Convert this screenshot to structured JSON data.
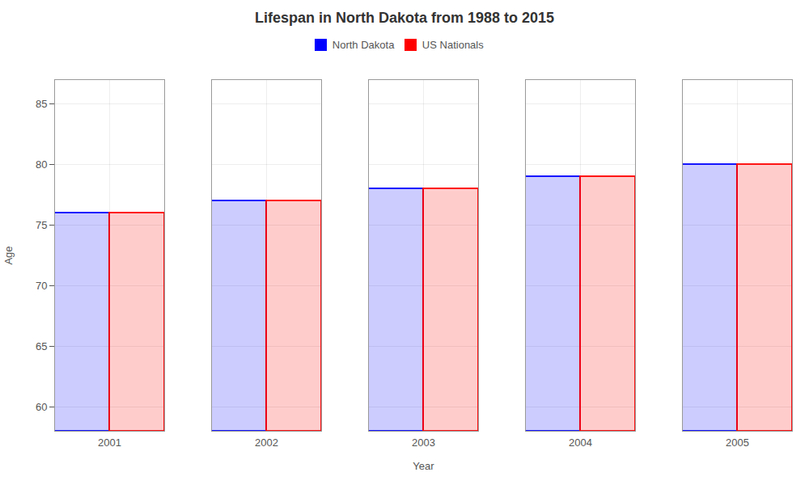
{
  "chart_data": {
    "type": "bar",
    "title": "Lifespan in North Dakota from 1988 to 2015",
    "xlabel": "Year",
    "ylabel": "Age",
    "categories": [
      "2001",
      "2002",
      "2003",
      "2004",
      "2005"
    ],
    "series": [
      {
        "name": "North Dakota",
        "color": "#0000ff",
        "values": [
          76,
          77,
          78,
          79,
          80
        ]
      },
      {
        "name": "US Nationals",
        "color": "#ff0000",
        "values": [
          76,
          77,
          78,
          79,
          80
        ]
      }
    ],
    "ylim": [
      58,
      87
    ],
    "yticks": [
      60,
      65,
      70,
      75,
      80,
      85
    ],
    "grid": true,
    "legend": "upper center"
  }
}
